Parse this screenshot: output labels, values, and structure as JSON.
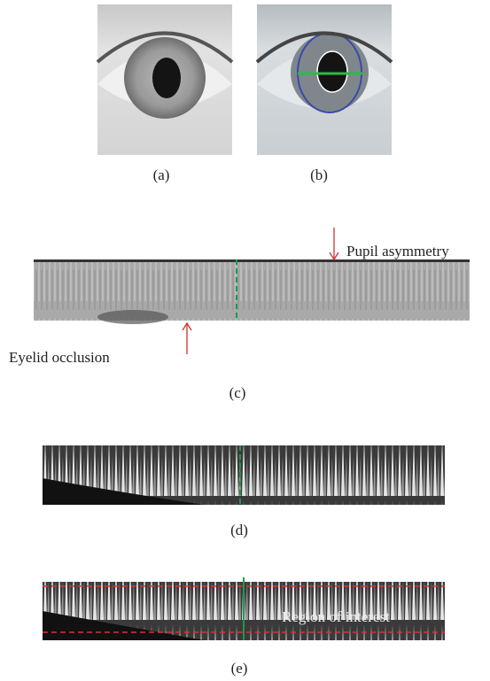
{
  "figure": {
    "panel_a": {
      "label": "(a)"
    },
    "panel_b": {
      "label": "(b)"
    },
    "panel_c": {
      "label": "(c)",
      "annotations": [
        "Pupil asymmetry",
        "Eyelid occlusion"
      ]
    },
    "panel_d": {
      "label": "(d)"
    },
    "panel_e": {
      "label": "(e)",
      "annotation": "Region of interest"
    }
  }
}
